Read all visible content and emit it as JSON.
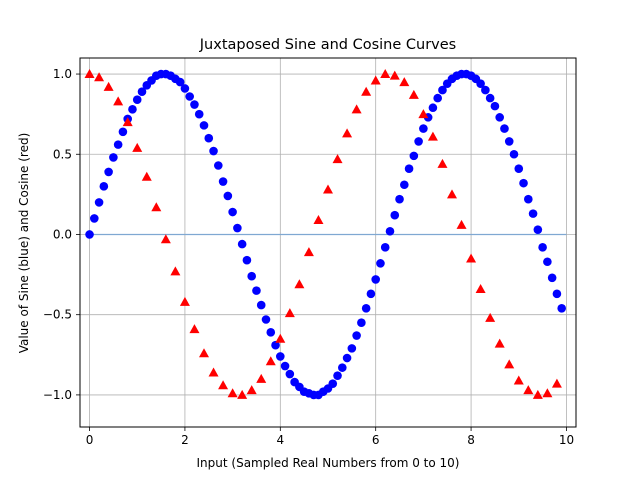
{
  "chart_data": {
    "type": "scatter",
    "title": "Juxtaposed Sine and Cosine Curves",
    "xlabel": "Input (Sampled Real Numbers from 0 to 10)",
    "ylabel": "Value of Sine (blue) and Cosine (red)",
    "xlim": [
      -0.2,
      10.2
    ],
    "ylim": [
      -1.2,
      1.1
    ],
    "xticks": [
      0,
      2,
      4,
      6,
      8,
      10
    ],
    "xtick_labels": [
      "0",
      "2",
      "4",
      "6",
      "8",
      "10"
    ],
    "yticks": [
      -1.0,
      -0.5,
      0.0,
      0.5,
      1.0
    ],
    "ytick_labels": [
      "−1.0",
      "−0.5",
      "0.0",
      "0.5",
      "1.0"
    ],
    "grid": true,
    "x": [
      0.0,
      0.2,
      0.4,
      0.6,
      0.8,
      1.0,
      1.2,
      1.4,
      1.6,
      1.8,
      2.0,
      2.2,
      2.4,
      2.6,
      2.8,
      3.0,
      3.2,
      3.4,
      3.6,
      3.8,
      4.0,
      4.2,
      4.4,
      4.6,
      4.8,
      5.0,
      5.2,
      5.4,
      5.6,
      5.8,
      6.0,
      6.2,
      6.4,
      6.6,
      6.8,
      7.0,
      7.2,
      7.4,
      7.6,
      7.8,
      8.0,
      8.2,
      8.4,
      8.6,
      8.8,
      9.0,
      9.2,
      9.4,
      9.6,
      9.8
    ],
    "series": [
      {
        "marker": "circle",
        "color": "#0000ff",
        "x": [
          0.0,
          0.1,
          0.2,
          0.3,
          0.4,
          0.5,
          0.6,
          0.7,
          0.8,
          0.9,
          1.0,
          1.1,
          1.2,
          1.3,
          1.4,
          1.5,
          1.6,
          1.7,
          1.8,
          1.9,
          2.0,
          2.1,
          2.2,
          2.3,
          2.4,
          2.5,
          2.6,
          2.7,
          2.8,
          2.9,
          3.0,
          3.1,
          3.2,
          3.3,
          3.4,
          3.5,
          3.6,
          3.7,
          3.8,
          3.9,
          4.0,
          4.1,
          4.2,
          4.3,
          4.4,
          4.5,
          4.6,
          4.7,
          4.8,
          4.9,
          5.0,
          5.1,
          5.2,
          5.3,
          5.4,
          5.5,
          5.6,
          5.7,
          5.8,
          5.9,
          6.0,
          6.1,
          6.2,
          6.3,
          6.4,
          6.5,
          6.6,
          6.7,
          6.8,
          6.9,
          7.0,
          7.1,
          7.2,
          7.3,
          7.4,
          7.5,
          7.6,
          7.7,
          7.8,
          7.9,
          8.0,
          8.1,
          8.2,
          8.3,
          8.4,
          8.5,
          8.6,
          8.7,
          8.8,
          8.9,
          9.0,
          9.1,
          9.2,
          9.3,
          9.4,
          9.5,
          9.6,
          9.7,
          9.8,
          9.9
        ],
        "values": [
          0.0,
          0.1,
          0.2,
          0.3,
          0.39,
          0.48,
          0.56,
          0.64,
          0.72,
          0.78,
          0.84,
          0.89,
          0.93,
          0.96,
          0.99,
          1.0,
          1.0,
          0.99,
          0.97,
          0.95,
          0.91,
          0.86,
          0.81,
          0.75,
          0.68,
          0.6,
          0.52,
          0.43,
          0.33,
          0.24,
          0.14,
          0.04,
          -0.06,
          -0.16,
          -0.26,
          -0.35,
          -0.44,
          -0.53,
          -0.61,
          -0.69,
          -0.76,
          -0.82,
          -0.87,
          -0.92,
          -0.95,
          -0.98,
          -0.99,
          -1.0,
          -1.0,
          -0.98,
          -0.96,
          -0.93,
          -0.88,
          -0.83,
          -0.77,
          -0.71,
          -0.63,
          -0.55,
          -0.46,
          -0.37,
          -0.28,
          -0.18,
          -0.08,
          0.02,
          0.12,
          0.22,
          0.31,
          0.41,
          0.49,
          0.58,
          0.66,
          0.73,
          0.79,
          0.85,
          0.9,
          0.94,
          0.97,
          0.99,
          1.0,
          1.0,
          0.99,
          0.97,
          0.94,
          0.9,
          0.85,
          0.8,
          0.73,
          0.66,
          0.58,
          0.5,
          0.41,
          0.32,
          0.22,
          0.13,
          0.03,
          -0.08,
          -0.17,
          -0.27,
          -0.37,
          -0.46
        ]
      },
      {
        "marker": "triangle",
        "color": "#ff0000",
        "values": [
          1.0,
          0.98,
          0.92,
          0.83,
          0.7,
          0.54,
          0.36,
          0.17,
          -0.03,
          -0.23,
          -0.42,
          -0.59,
          -0.74,
          -0.86,
          -0.94,
          -0.99,
          -1.0,
          -0.97,
          -0.9,
          -0.79,
          -0.65,
          -0.49,
          -0.31,
          -0.11,
          0.09,
          0.28,
          0.47,
          0.63,
          0.78,
          0.89,
          0.96,
          1.0,
          0.99,
          0.95,
          0.87,
          0.75,
          0.61,
          0.44,
          0.25,
          0.06,
          -0.15,
          -0.34,
          -0.52,
          -0.68,
          -0.81,
          -0.91,
          -0.97,
          -1.0,
          -0.99,
          -0.93
        ]
      }
    ]
  }
}
